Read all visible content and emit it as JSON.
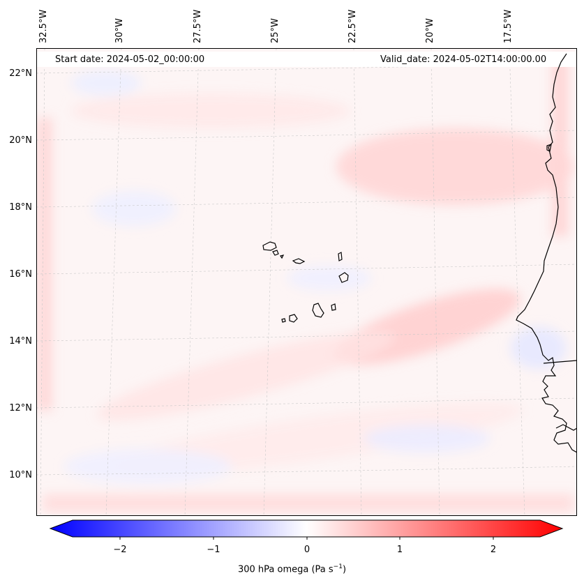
{
  "header": {
    "start_date": "Start date: 2024-05-02_00:00:00",
    "valid_date": "Valid_date: 2024-05-02T14:00:00.00"
  },
  "longitude_labels": [
    "32.5°W",
    "30°W",
    "27.5°W",
    "25°W",
    "22.5°W",
    "20°W",
    "17.5°W"
  ],
  "latitude_labels": [
    "22°N",
    "20°N",
    "18°N",
    "16°N",
    "14°N",
    "12°N",
    "10°N"
  ],
  "colorbar": {
    "label_prefix": "300 hPa omega (Pa s",
    "label_exp": "−1",
    "label_suffix": ")",
    "ticks": [
      "−2",
      "−1",
      "0",
      "1",
      "2"
    ],
    "range": [
      -2.6,
      2.6
    ],
    "colormap": "bwr",
    "low_color": "#0000ff",
    "mid_color": "#ffffff",
    "high_color": "#ff0000"
  },
  "map": {
    "field": "300 hPa omega",
    "gridlines": true,
    "coastline_color": "#000000"
  }
}
